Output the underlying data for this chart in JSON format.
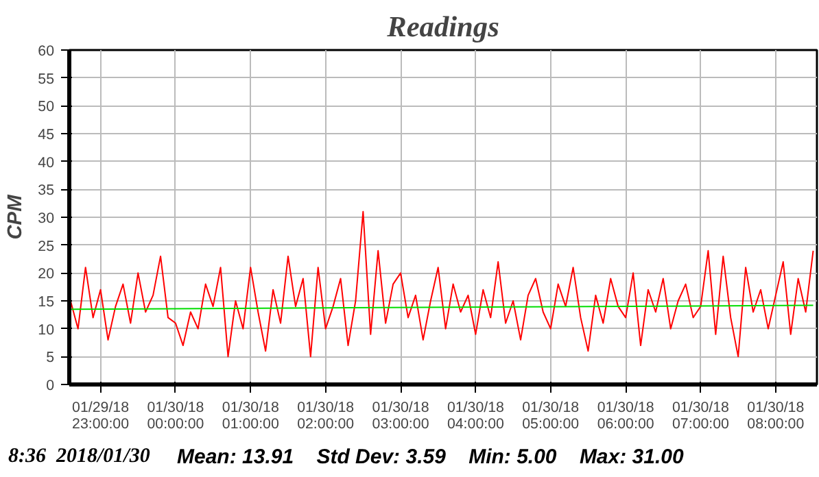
{
  "chart_data": {
    "type": "line",
    "title": "Readings",
    "ylabel": "CPM",
    "x": [
      "2018-01-29T22:36",
      "2018-01-29T22:42",
      "2018-01-29T22:48",
      "2018-01-29T22:54",
      "2018-01-29T23:00",
      "2018-01-29T23:06",
      "2018-01-29T23:12",
      "2018-01-29T23:18",
      "2018-01-29T23:24",
      "2018-01-29T23:30",
      "2018-01-29T23:36",
      "2018-01-29T23:42",
      "2018-01-29T23:48",
      "2018-01-29T23:54",
      "2018-01-30T00:00",
      "2018-01-30T00:06",
      "2018-01-30T00:12",
      "2018-01-30T00:18",
      "2018-01-30T00:24",
      "2018-01-30T00:30",
      "2018-01-30T00:36",
      "2018-01-30T00:42",
      "2018-01-30T00:48",
      "2018-01-30T00:54",
      "2018-01-30T01:00",
      "2018-01-30T01:06",
      "2018-01-30T01:12",
      "2018-01-30T01:18",
      "2018-01-30T01:24",
      "2018-01-30T01:30",
      "2018-01-30T01:36",
      "2018-01-30T01:42",
      "2018-01-30T01:48",
      "2018-01-30T01:54",
      "2018-01-30T02:00",
      "2018-01-30T02:06",
      "2018-01-30T02:12",
      "2018-01-30T02:18",
      "2018-01-30T02:24",
      "2018-01-30T02:30",
      "2018-01-30T02:36",
      "2018-01-30T02:42",
      "2018-01-30T02:48",
      "2018-01-30T02:54",
      "2018-01-30T03:00",
      "2018-01-30T03:06",
      "2018-01-30T03:12",
      "2018-01-30T03:18",
      "2018-01-30T03:24",
      "2018-01-30T03:30",
      "2018-01-30T03:36",
      "2018-01-30T03:42",
      "2018-01-30T03:48",
      "2018-01-30T03:54",
      "2018-01-30T04:00",
      "2018-01-30T04:06",
      "2018-01-30T04:12",
      "2018-01-30T04:18",
      "2018-01-30T04:24",
      "2018-01-30T04:30",
      "2018-01-30T04:36",
      "2018-01-30T04:42",
      "2018-01-30T04:48",
      "2018-01-30T04:54",
      "2018-01-30T05:00",
      "2018-01-30T05:06",
      "2018-01-30T05:12",
      "2018-01-30T05:18",
      "2018-01-30T05:24",
      "2018-01-30T05:30",
      "2018-01-30T05:36",
      "2018-01-30T05:42",
      "2018-01-30T05:48",
      "2018-01-30T05:54",
      "2018-01-30T06:00",
      "2018-01-30T06:06",
      "2018-01-30T06:12",
      "2018-01-30T06:18",
      "2018-01-30T06:24",
      "2018-01-30T06:30",
      "2018-01-30T06:36",
      "2018-01-30T06:42",
      "2018-01-30T06:48",
      "2018-01-30T06:54",
      "2018-01-30T07:00",
      "2018-01-30T07:06",
      "2018-01-30T07:12",
      "2018-01-30T07:18",
      "2018-01-30T07:24",
      "2018-01-30T07:30",
      "2018-01-30T07:36",
      "2018-01-30T07:42",
      "2018-01-30T07:48",
      "2018-01-30T07:54",
      "2018-01-30T08:00",
      "2018-01-30T08:06",
      "2018-01-30T08:12",
      "2018-01-30T08:18",
      "2018-01-30T08:24",
      "2018-01-30T08:30"
    ],
    "series": [
      {
        "color": "#ff0000",
        "values": [
          15,
          10,
          21,
          12,
          17,
          8,
          14,
          18,
          11,
          20,
          13,
          16,
          23,
          12,
          11,
          7,
          13,
          10,
          18,
          14,
          21,
          5,
          15,
          10,
          21,
          13,
          6,
          17,
          11,
          23,
          14,
          19,
          5,
          21,
          10,
          14,
          19,
          7,
          15,
          31,
          9,
          24,
          11,
          18,
          20,
          12,
          16,
          8,
          15,
          21,
          10,
          18,
          13,
          16,
          9,
          17,
          12,
          22,
          11,
          15,
          8,
          16,
          19,
          13,
          10,
          18,
          14,
          21,
          12,
          6,
          16,
          11,
          19,
          14,
          12,
          20,
          7,
          17,
          13,
          19,
          10,
          15,
          18,
          12,
          14,
          24,
          9,
          23,
          12,
          5,
          21,
          13,
          17,
          10,
          16,
          22,
          9,
          19,
          13,
          24
        ]
      },
      {
        "type": "line",
        "color": "#00dd00",
        "x": [
          "2018-01-29T22:36",
          "2018-01-30T08:30"
        ],
        "values": [
          13.5,
          14.2
        ]
      }
    ],
    "xlim": [
      "2018-01-29T22:35",
      "2018-01-30T08:33"
    ],
    "xticks": [
      {
        "value": "2018-01-29T23:00",
        "label": "01/29/18\n23:00:00"
      },
      {
        "value": "2018-01-30T00:00",
        "label": "01/30/18\n00:00:00"
      },
      {
        "value": "2018-01-30T01:00",
        "label": "01/30/18\n01:00:00"
      },
      {
        "value": "2018-01-30T02:00",
        "label": "01/30/18\n02:00:00"
      },
      {
        "value": "2018-01-30T03:00",
        "label": "01/30/18\n03:00:00"
      },
      {
        "value": "2018-01-30T04:00",
        "label": "01/30/18\n04:00:00"
      },
      {
        "value": "2018-01-30T05:00",
        "label": "01/30/18\n05:00:00"
      },
      {
        "value": "2018-01-30T06:00",
        "label": "01/30/18\n06:00:00"
      },
      {
        "value": "2018-01-30T07:00",
        "label": "01/30/18\n07:00:00"
      },
      {
        "value": "2018-01-30T08:00",
        "label": "01/30/18\n08:00:00"
      }
    ],
    "ylim": [
      0,
      60
    ],
    "yticks": [
      0,
      5,
      10,
      15,
      20,
      25,
      30,
      35,
      40,
      45,
      50,
      55,
      60
    ],
    "grid": true,
    "annotations": [
      "8:36   2018/01/30",
      "Mean: 13.91    Std Dev: 3.59    Min: 5.00    Max: 31.00"
    ]
  }
}
